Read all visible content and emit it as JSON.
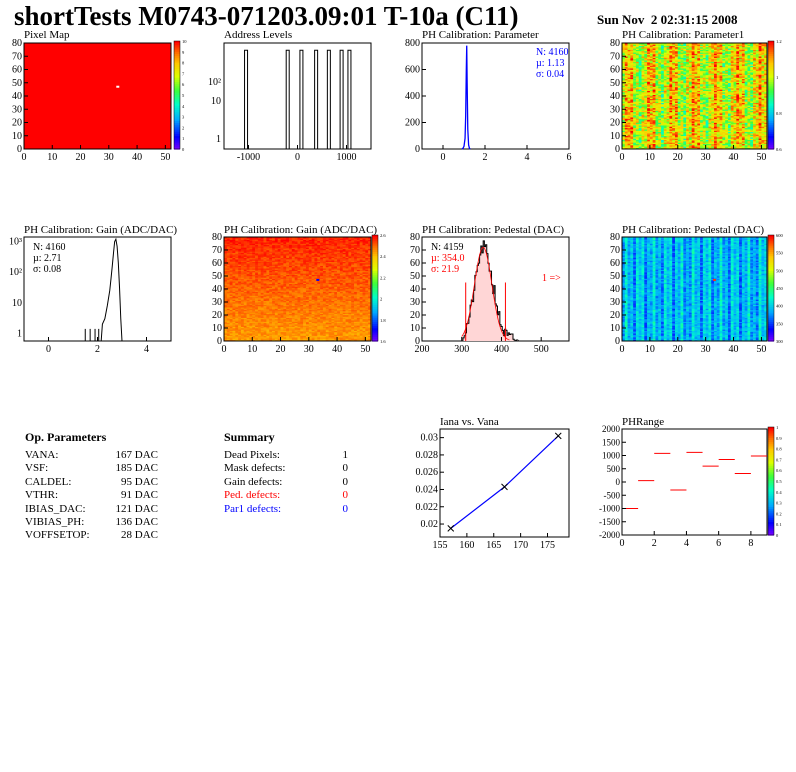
{
  "header": {
    "title": "shortTests M0743-071203.09:01 T-10a (C11)",
    "date": "Sun Nov  2 02:31:15 2008"
  },
  "colors": {
    "hist_line": "#000000",
    "fit_line": "#0000ff",
    "red": "#ff0000",
    "blue": "#0000ff",
    "stats_blue": "#0000ff",
    "stats_red": "#ff0000"
  },
  "chart_data": [
    {
      "id": "pixel-map",
      "type": "heatmap",
      "title": "Pixel Map",
      "xlim": [
        0,
        52
      ],
      "ylim": [
        0,
        80
      ],
      "x_ticks": [
        "0",
        "10",
        "20",
        "30",
        "40",
        "50"
      ],
      "y_ticks": [
        "0",
        "10",
        "20",
        "30",
        "40",
        "50",
        "60",
        "70",
        "80"
      ],
      "z_ticks": [
        "10",
        "9",
        "8",
        "7",
        "6",
        "5",
        "4",
        "3",
        "2",
        "1",
        "0"
      ],
      "fill_value": 10,
      "hot_pixel": {
        "x": 33,
        "y": 47,
        "value": 0
      }
    },
    {
      "id": "address-levels",
      "type": "bar",
      "title": "Address Levels",
      "xlim": [
        -1500,
        1500
      ],
      "log_y": true,
      "x_ticks": [
        "-1000",
        "0",
        "1000"
      ],
      "peaks_x": [
        -1050,
        -200,
        80,
        380,
        640,
        900,
        1060
      ],
      "peak_value": 400
    },
    {
      "id": "ph-cal-parameter",
      "type": "bar",
      "title": "PH Calibration: Parameter",
      "xlim": [
        -1,
        6
      ],
      "ylim": [
        0,
        800
      ],
      "x_ticks": [
        "0",
        "2",
        "4",
        "6"
      ],
      "y_ticks": [
        "0",
        "200",
        "400",
        "600",
        "800"
      ],
      "peak_x": 1.13,
      "peak_value": 780,
      "stats": [
        "N: 4160",
        "µ: 1.13",
        "σ: 0.04"
      ]
    },
    {
      "id": "ph-cal-parameter1",
      "type": "heatmap",
      "title": "PH Calibration: Parameter1",
      "xlim": [
        0,
        52
      ],
      "ylim": [
        0,
        80
      ],
      "x_ticks": [
        "0",
        "10",
        "20",
        "30",
        "40",
        "50"
      ],
      "y_ticks": [
        "0",
        "10",
        "20",
        "30",
        "40",
        "50",
        "60",
        "70",
        "80"
      ],
      "z_ticks": [
        "1.2",
        "1",
        "0.8",
        "0.6"
      ],
      "z_range": [
        0.6,
        1.25
      ]
    },
    {
      "id": "ph-cal-gain-hist",
      "type": "bar",
      "title": "PH Calibration: Gain (ADC/DAC)",
      "xlim": [
        -1,
        5
      ],
      "log_y": true,
      "x_ticks": [
        "0",
        "2",
        "4"
      ],
      "y_ticks": [
        "1",
        "10",
        "10²",
        "10³"
      ],
      "peak_x": 2.71,
      "peak_value": 100,
      "stats": [
        "N: 4160",
        "µ: 2.71",
        "σ: 0.08"
      ]
    },
    {
      "id": "ph-cal-gain-map",
      "type": "heatmap",
      "title": "PH Calibration: Gain (ADC/DAC)",
      "xlim": [
        0,
        52
      ],
      "ylim": [
        0,
        80
      ],
      "x_ticks": [
        "0",
        "10",
        "20",
        "30",
        "40",
        "50"
      ],
      "y_ticks": [
        "0",
        "10",
        "20",
        "30",
        "40",
        "50",
        "60",
        "70",
        "80"
      ],
      "z_ticks": [
        "2.6",
        "2.4",
        "2.2",
        "2",
        "1.8",
        "1.6"
      ],
      "z_range": [
        1.5,
        2.7
      ]
    },
    {
      "id": "ph-cal-pedestal-hist",
      "type": "bar",
      "title": "PH Calibration: Pedestal (DAC)",
      "xlim": [
        200,
        570
      ],
      "ylim": [
        0,
        80
      ],
      "x_ticks": [
        "200",
        "300",
        "400",
        "500"
      ],
      "y_ticks": [
        "0",
        "10",
        "20",
        "30",
        "40",
        "50",
        "60",
        "70",
        "80"
      ],
      "mean": 354.0,
      "sigma": 21.9,
      "cut_lines": [
        310,
        410
      ],
      "stats": [
        "N: 4159",
        "µ: 354.0",
        "σ: 21.9"
      ],
      "overflow_label": "1 =>"
    },
    {
      "id": "ph-cal-pedestal-map",
      "type": "heatmap",
      "title": "PH Calibration: Pedestal (DAC)",
      "xlim": [
        0,
        52
      ],
      "ylim": [
        0,
        80
      ],
      "x_ticks": [
        "0",
        "10",
        "20",
        "30",
        "40",
        "50"
      ],
      "y_ticks": [
        "0",
        "10",
        "20",
        "30",
        "40",
        "50",
        "60",
        "70",
        "80"
      ],
      "z_ticks": [
        "600",
        "550",
        "500",
        "450",
        "400",
        "350",
        "300"
      ],
      "z_range": [
        290,
        610
      ]
    },
    {
      "id": "iana-vs-vana",
      "type": "line",
      "title": "Iana vs. Vana",
      "x": [
        157,
        167,
        177
      ],
      "y": [
        0.0195,
        0.0243,
        0.0302
      ],
      "xlim": [
        155,
        179
      ],
      "ylim": [
        0.0185,
        0.031
      ],
      "x_ticks": [
        "155",
        "160",
        "165",
        "170",
        "175"
      ],
      "y_ticks": [
        "0.02",
        "0.022",
        "0.024",
        "0.026",
        "0.028",
        "0.03"
      ]
    },
    {
      "id": "ph-range",
      "type": "scatter",
      "title": "PHRange",
      "xlim": [
        0,
        9
      ],
      "ylim": [
        -2000,
        2000
      ],
      "x_ticks": [
        "0",
        "2",
        "4",
        "6",
        "8"
      ],
      "y_ticks": [
        "2000",
        "1500",
        "1000",
        "500",
        "0",
        "-500",
        "-1000",
        "-1500",
        "-2000"
      ],
      "z_ticks": [
        "1",
        "0.9",
        "0.8",
        "0.7",
        "0.6",
        "0.5",
        "0.4",
        "0.3",
        "0.2",
        "0.1",
        "0"
      ],
      "x": [
        0.5,
        1.5,
        2.5,
        3.5,
        4.5,
        5.5,
        6.5,
        7.5,
        8.5
      ],
      "y": [
        -1000,
        50,
        1080,
        -300,
        1120,
        600,
        850,
        320,
        980
      ]
    }
  ],
  "op_parameters": {
    "heading": "Op. Parameters",
    "rows": [
      {
        "k": "VANA:",
        "v": "167 DAC"
      },
      {
        "k": "VSF:",
        "v": "185 DAC"
      },
      {
        "k": "CALDEL:",
        "v": "95 DAC"
      },
      {
        "k": "VTHR:",
        "v": "91 DAC"
      },
      {
        "k": "IBIAS_DAC:",
        "v": "121 DAC"
      },
      {
        "k": "VIBIAS_PH:",
        "v": "136 DAC"
      },
      {
        "k": "VOFFSETOP:",
        "v": "28 DAC"
      }
    ]
  },
  "summary": {
    "heading": "Summary",
    "rows": [
      {
        "k": "Dead Pixels:",
        "v": "1",
        "color": "#000000"
      },
      {
        "k": "Mask defects:",
        "v": "0",
        "color": "#000000"
      },
      {
        "k": "Gain defects:",
        "v": "0",
        "color": "#000000"
      },
      {
        "k": "Ped. defects:",
        "v": "0",
        "color": "#ff0000"
      },
      {
        "k": "Par1 defects:",
        "v": "0",
        "color": "#0000ff"
      }
    ]
  }
}
